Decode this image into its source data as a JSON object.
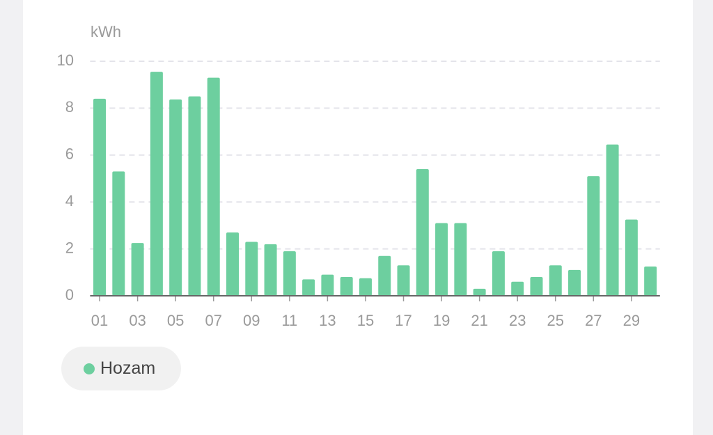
{
  "chart_data": {
    "type": "bar",
    "y_label": "kWh",
    "categories": [
      "01",
      null,
      "03",
      null,
      "05",
      null,
      "07",
      null,
      "09",
      null,
      "11",
      null,
      "13",
      null,
      "15",
      null,
      "17",
      null,
      "19",
      null,
      "21",
      null,
      "23",
      null,
      "25",
      null,
      "27",
      null,
      "29",
      null
    ],
    "series": [
      {
        "name": "Hozam",
        "color": "#6dcf9f",
        "values": [
          8.4,
          5.3,
          2.25,
          9.55,
          8.37,
          8.5,
          9.3,
          2.7,
          2.3,
          2.2,
          1.9,
          0.7,
          0.9,
          0.8,
          0.75,
          1.7,
          1.3,
          5.4,
          3.1,
          3.1,
          0.3,
          1.9,
          0.6,
          0.8,
          1.3,
          1.1,
          5.1,
          6.45,
          3.25,
          1.25
        ]
      }
    ],
    "ylim": [
      0,
      10
    ],
    "yticks": [
      0,
      2,
      4,
      6,
      8,
      10
    ],
    "grid": true
  }
}
